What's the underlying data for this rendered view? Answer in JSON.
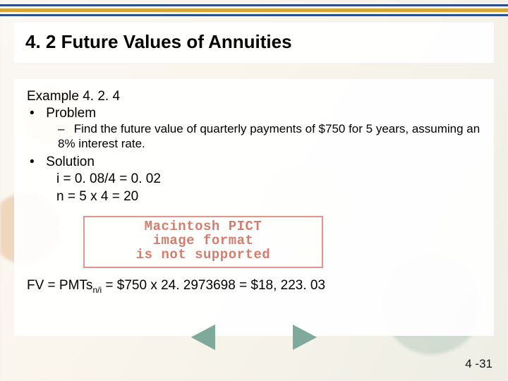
{
  "colors": {
    "bar_blue": "#2c4f8f",
    "bar_gold": "#d7a638",
    "nav_fill": "#7fa99a",
    "nav_border": "#4a7869",
    "warn_border": "rgba(200,80,60,0.6)",
    "warn_text": "rgba(200,80,60,0.75)"
  },
  "top_bars": [
    {
      "color_key": "bar_blue",
      "width": 3
    },
    {
      "color_key": "bar_gold",
      "width": 5
    },
    {
      "color_key": "bar_blue",
      "width": 3
    }
  ],
  "title": "4. 2 Future Values of Annuities",
  "example_label": "Example 4. 2. 4",
  "bullets": {
    "problem_label": "Problem",
    "problem_detail": "Find the future value of quarterly payments of $750 for 5 years, assuming an 8% interest rate.",
    "solution_label": "Solution",
    "solution_lines": [
      "i = 0. 08/4 = 0. 02",
      "n = 5 x 4 = 20"
    ]
  },
  "pict_warning": {
    "line1": "Macintosh PICT",
    "line2": "image format",
    "line3": "is not supported"
  },
  "fv": {
    "prefix": "FV = PMTs",
    "subscript": "n/i",
    "rest": " = $750 x 24. 2973698 = $18, 223. 03"
  },
  "nav": {
    "prev_label": "previous",
    "next_label": "next"
  },
  "page_number": "4 -31"
}
